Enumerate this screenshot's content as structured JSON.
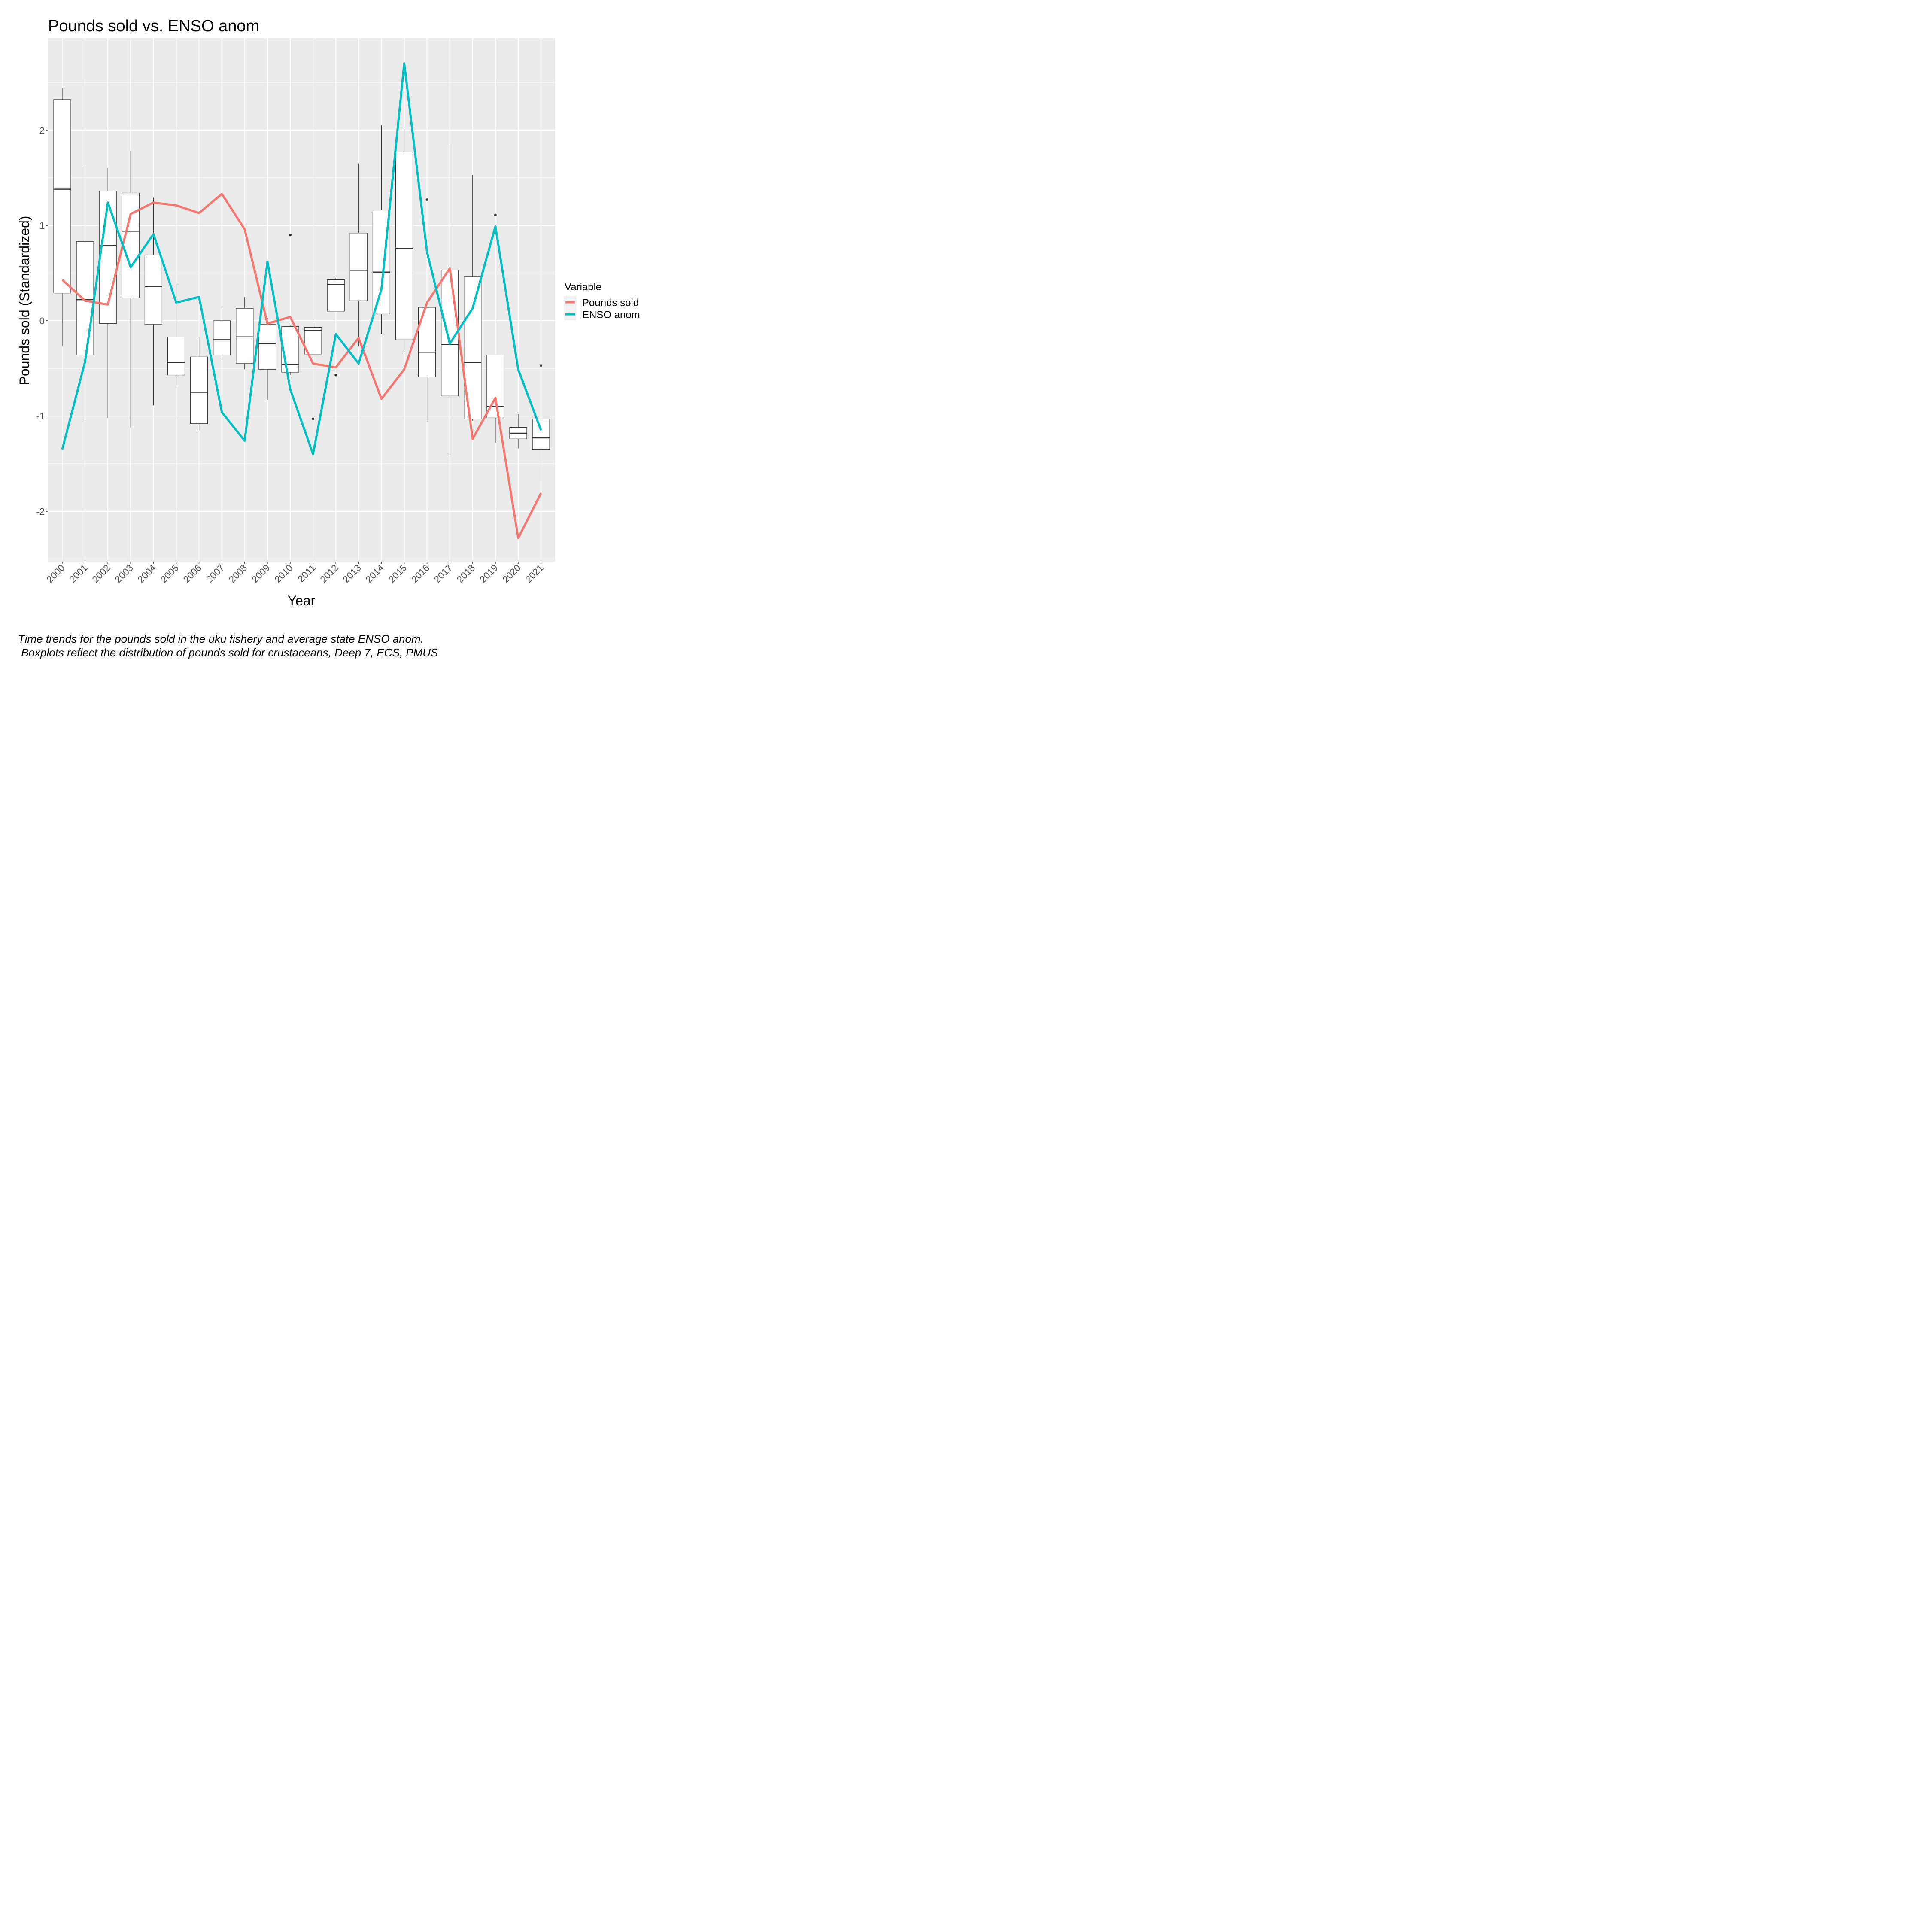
{
  "chart_data": {
    "type": "line",
    "title": "Pounds sold vs. ENSO anom",
    "xlabel": "Year",
    "ylabel": "Pounds sold (Standardized)",
    "ylim": [
      -2.5,
      2.9
    ],
    "yticks": [
      -2,
      -1,
      0,
      1,
      2
    ],
    "ytick_labels": [
      "-2",
      "-1",
      "0",
      "1",
      "2"
    ],
    "grid": true,
    "legend_position": "right",
    "legend_title": "Variable",
    "categories": [
      "2000",
      "2001",
      "2002",
      "2003",
      "2004",
      "2005",
      "2006",
      "2007",
      "2008",
      "2009",
      "2010",
      "2011",
      "2012",
      "2013",
      "2014",
      "2015",
      "2016",
      "2017",
      "2018",
      "2019",
      "2020",
      "2021"
    ],
    "series": [
      {
        "name": "Pounds sold",
        "color": "#f8766d",
        "values": [
          0.43,
          0.21,
          0.17,
          1.12,
          1.24,
          1.21,
          1.13,
          1.33,
          0.96,
          -0.03,
          0.04,
          -0.45,
          -0.49,
          -0.18,
          -0.82,
          -0.51,
          0.19,
          0.55,
          -1.24,
          -0.81,
          -2.28,
          -1.81
        ]
      },
      {
        "name": "ENSO anom",
        "color": "#00bfc4",
        "values": [
          -1.35,
          -0.43,
          1.24,
          0.56,
          0.91,
          0.19,
          0.25,
          -0.96,
          -1.26,
          0.62,
          -0.72,
          -1.4,
          -0.14,
          -0.45,
          0.33,
          2.7,
          0.72,
          -0.24,
          0.13,
          0.99,
          -0.51,
          -1.15
        ]
      }
    ],
    "boxplots": [
      {
        "year": "2000",
        "whisker_low": -0.27,
        "q1": 0.29,
        "median": 1.38,
        "q3": 2.32,
        "whisker_high": 2.44,
        "outliers": []
      },
      {
        "year": "2001",
        "whisker_low": -1.05,
        "q1": -0.36,
        "median": 0.22,
        "q3": 0.83,
        "whisker_high": 1.62,
        "outliers": []
      },
      {
        "year": "2002",
        "whisker_low": -1.02,
        "q1": -0.03,
        "median": 0.79,
        "q3": 1.36,
        "whisker_high": 1.6,
        "outliers": []
      },
      {
        "year": "2003",
        "whisker_low": -1.12,
        "q1": 0.24,
        "median": 0.94,
        "q3": 1.34,
        "whisker_high": 1.78,
        "outliers": []
      },
      {
        "year": "2004",
        "whisker_low": -0.89,
        "q1": -0.04,
        "median": 0.36,
        "q3": 0.69,
        "whisker_high": 1.29,
        "outliers": []
      },
      {
        "year": "2005",
        "whisker_low": -0.69,
        "q1": -0.57,
        "median": -0.44,
        "q3": -0.17,
        "whisker_high": 0.39,
        "outliers": []
      },
      {
        "year": "2006",
        "whisker_low": -1.15,
        "q1": -1.08,
        "median": -0.75,
        "q3": -0.38,
        "whisker_high": -0.17,
        "outliers": []
      },
      {
        "year": "2007",
        "whisker_low": -0.39,
        "q1": -0.36,
        "median": -0.2,
        "q3": 0.0,
        "whisker_high": 0.14,
        "outliers": []
      },
      {
        "year": "2008",
        "whisker_low": -0.51,
        "q1": -0.45,
        "median": -0.17,
        "q3": 0.13,
        "whisker_high": 0.25,
        "outliers": []
      },
      {
        "year": "2009",
        "whisker_low": -0.83,
        "q1": -0.51,
        "median": -0.24,
        "q3": -0.04,
        "whisker_high": 0.03,
        "outliers": []
      },
      {
        "year": "2010",
        "whisker_low": -0.57,
        "q1": -0.54,
        "median": -0.46,
        "q3": -0.06,
        "whisker_high": -0.05,
        "outliers": [
          0.9
        ]
      },
      {
        "year": "2011",
        "whisker_low": -0.35,
        "q1": -0.35,
        "median": -0.1,
        "q3": -0.07,
        "whisker_high": 0.0,
        "outliers": [
          -1.03
        ]
      },
      {
        "year": "2012",
        "whisker_low": 0.1,
        "q1": 0.1,
        "median": 0.38,
        "q3": 0.43,
        "whisker_high": 0.45,
        "outliers": [
          -0.57
        ]
      },
      {
        "year": "2013",
        "whisker_low": -0.27,
        "q1": 0.21,
        "median": 0.53,
        "q3": 0.92,
        "whisker_high": 1.65,
        "outliers": []
      },
      {
        "year": "2014",
        "whisker_low": -0.14,
        "q1": 0.07,
        "median": 0.51,
        "q3": 1.16,
        "whisker_high": 2.05,
        "outliers": []
      },
      {
        "year": "2015",
        "whisker_low": -0.33,
        "q1": -0.2,
        "median": 0.76,
        "q3": 1.77,
        "whisker_high": 2.01,
        "outliers": []
      },
      {
        "year": "2016",
        "whisker_low": -1.06,
        "q1": -0.59,
        "median": -0.33,
        "q3": 0.14,
        "whisker_high": 0.14,
        "outliers": [
          1.27
        ]
      },
      {
        "year": "2017",
        "whisker_low": -1.41,
        "q1": -0.79,
        "median": -0.25,
        "q3": 0.53,
        "whisker_high": 1.85,
        "outliers": []
      },
      {
        "year": "2018",
        "whisker_low": -1.05,
        "q1": -1.03,
        "median": -0.44,
        "q3": 0.46,
        "whisker_high": 1.53,
        "outliers": []
      },
      {
        "year": "2019",
        "whisker_low": -1.28,
        "q1": -1.02,
        "median": -0.9,
        "q3": -0.36,
        "whisker_high": -0.36,
        "outliers": [
          1.11
        ]
      },
      {
        "year": "2020",
        "whisker_low": -1.34,
        "q1": -1.24,
        "median": -1.18,
        "q3": -1.12,
        "whisker_high": -0.98,
        "outliers": []
      },
      {
        "year": "2021",
        "whisker_low": -1.68,
        "q1": -1.35,
        "median": -1.23,
        "q3": -1.03,
        "whisker_high": -1.03,
        "outliers": [
          -0.47
        ]
      }
    ]
  },
  "caption": {
    "line1": "Time trends for the pounds sold in the uku fishery and average state ENSO anom.",
    "line2": " Boxplots reflect the distribution of pounds sold for crustaceans, Deep 7, ECS, PMUS"
  }
}
